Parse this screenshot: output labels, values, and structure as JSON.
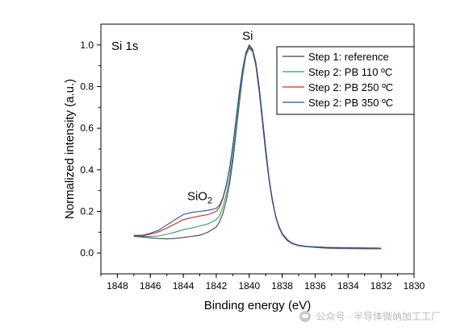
{
  "chart_data": {
    "type": "line",
    "title": "",
    "panel_label": "Si 1s",
    "xlabel": "Binding energy (eV)",
    "ylabel": "Normalized intensity (a.u.)",
    "xlim": [
      1849,
      1830
    ],
    "ylim": [
      -0.1,
      1.1
    ],
    "x_axis_reversed": true,
    "xticks": [
      1848,
      1846,
      1844,
      1842,
      1840,
      1838,
      1836,
      1834,
      1832,
      1830
    ],
    "yticks": [
      0.0,
      0.2,
      0.4,
      0.6,
      0.8,
      1.0
    ],
    "ytick_labels": [
      "0.0",
      "0.2",
      "0.4",
      "0.6",
      "0.8",
      "1.0"
    ],
    "legend_position": "top-right",
    "annotations": [
      {
        "text": "Si",
        "x": 1840.1,
        "y": 1.025
      },
      {
        "text": "SiO",
        "subscript": "2",
        "x": 1843.0,
        "y": 0.255
      }
    ],
    "series": [
      {
        "name": "Step 1: reference",
        "color": "#404040",
        "x": [
          1847.0,
          1846.5,
          1846.0,
          1845.5,
          1845.0,
          1844.5,
          1844.0,
          1843.5,
          1843.0,
          1842.5,
          1842.0,
          1841.8,
          1841.6,
          1841.4,
          1841.2,
          1841.0,
          1840.8,
          1840.6,
          1840.4,
          1840.2,
          1840.0,
          1839.8,
          1839.6,
          1839.4,
          1839.2,
          1839.0,
          1838.8,
          1838.6,
          1838.4,
          1838.2,
          1838.0,
          1837.7,
          1837.4,
          1837.0,
          1836.5,
          1836.0,
          1835.5,
          1835.0,
          1834.0,
          1833.0,
          1832.0
        ],
        "values": [
          0.08,
          0.077,
          0.073,
          0.07,
          0.068,
          0.07,
          0.075,
          0.08,
          0.085,
          0.1,
          0.125,
          0.15,
          0.19,
          0.25,
          0.33,
          0.44,
          0.58,
          0.72,
          0.85,
          0.95,
          0.985,
          0.97,
          0.9,
          0.78,
          0.63,
          0.48,
          0.35,
          0.25,
          0.175,
          0.125,
          0.09,
          0.06,
          0.045,
          0.035,
          0.03,
          0.03,
          0.028,
          0.026,
          0.025,
          0.024,
          0.024
        ]
      },
      {
        "name": "Step 2: PB 110 ºC",
        "color": "#2ca05a",
        "x": [
          1847.0,
          1846.5,
          1846.0,
          1845.5,
          1845.0,
          1844.5,
          1844.0,
          1843.5,
          1843.0,
          1842.5,
          1842.0,
          1841.8,
          1841.6,
          1841.4,
          1841.2,
          1841.0,
          1840.8,
          1840.6,
          1840.4,
          1840.2,
          1840.0,
          1839.8,
          1839.6,
          1839.4,
          1839.2,
          1839.0,
          1838.8,
          1838.6,
          1838.4,
          1838.2,
          1838.0,
          1837.7,
          1837.4,
          1837.0,
          1836.5,
          1836.0,
          1835.5,
          1835.0,
          1834.0,
          1833.0,
          1832.0
        ],
        "values": [
          0.082,
          0.08,
          0.08,
          0.082,
          0.09,
          0.1,
          0.112,
          0.12,
          0.13,
          0.14,
          0.16,
          0.18,
          0.22,
          0.28,
          0.36,
          0.47,
          0.6,
          0.74,
          0.86,
          0.95,
          0.99,
          0.975,
          0.91,
          0.8,
          0.65,
          0.5,
          0.36,
          0.26,
          0.18,
          0.13,
          0.095,
          0.065,
          0.048,
          0.038,
          0.032,
          0.03,
          0.028,
          0.027,
          0.026,
          0.025,
          0.024
        ]
      },
      {
        "name": "Step 2: PB 250 ºC",
        "color": "#d62728",
        "x": [
          1847.0,
          1846.5,
          1846.0,
          1845.5,
          1845.0,
          1844.5,
          1844.0,
          1843.5,
          1843.0,
          1842.5,
          1842.0,
          1841.8,
          1841.6,
          1841.4,
          1841.2,
          1841.0,
          1840.8,
          1840.6,
          1840.4,
          1840.2,
          1840.0,
          1839.8,
          1839.6,
          1839.4,
          1839.2,
          1839.0,
          1838.8,
          1838.6,
          1838.4,
          1838.2,
          1838.0,
          1837.7,
          1837.4,
          1837.0,
          1836.5,
          1836.0,
          1835.5,
          1835.0,
          1834.0,
          1833.0,
          1832.0
        ],
        "values": [
          0.082,
          0.083,
          0.09,
          0.102,
          0.12,
          0.14,
          0.16,
          0.17,
          0.178,
          0.185,
          0.2,
          0.22,
          0.26,
          0.32,
          0.4,
          0.51,
          0.64,
          0.77,
          0.88,
          0.96,
          0.995,
          0.978,
          0.915,
          0.8,
          0.65,
          0.5,
          0.36,
          0.255,
          0.175,
          0.125,
          0.09,
          0.062,
          0.045,
          0.035,
          0.03,
          0.027,
          0.024,
          0.022,
          0.021,
          0.02,
          0.02
        ]
      },
      {
        "name": "Step 2: PB 350 ºC",
        "color": "#1f4fa8",
        "x": [
          1847.0,
          1846.5,
          1846.0,
          1845.5,
          1845.0,
          1844.5,
          1844.0,
          1843.5,
          1843.0,
          1842.5,
          1842.0,
          1841.8,
          1841.6,
          1841.4,
          1841.2,
          1841.0,
          1840.8,
          1840.6,
          1840.4,
          1840.2,
          1840.0,
          1839.8,
          1839.6,
          1839.4,
          1839.2,
          1839.0,
          1838.8,
          1838.6,
          1838.4,
          1838.2,
          1838.0,
          1837.7,
          1837.4,
          1837.0,
          1836.5,
          1836.0,
          1835.5,
          1835.0,
          1834.0,
          1833.0,
          1832.0
        ],
        "values": [
          0.085,
          0.085,
          0.095,
          0.11,
          0.135,
          0.16,
          0.185,
          0.195,
          0.2,
          0.205,
          0.215,
          0.23,
          0.265,
          0.325,
          0.405,
          0.515,
          0.645,
          0.775,
          0.885,
          0.965,
          1.0,
          0.98,
          0.915,
          0.8,
          0.65,
          0.5,
          0.36,
          0.255,
          0.178,
          0.128,
          0.092,
          0.064,
          0.047,
          0.037,
          0.031,
          0.028,
          0.026,
          0.025,
          0.024,
          0.023,
          0.023
        ]
      }
    ]
  },
  "watermark": {
    "text": "公众号 · 半导体微纳加工工厂"
  }
}
